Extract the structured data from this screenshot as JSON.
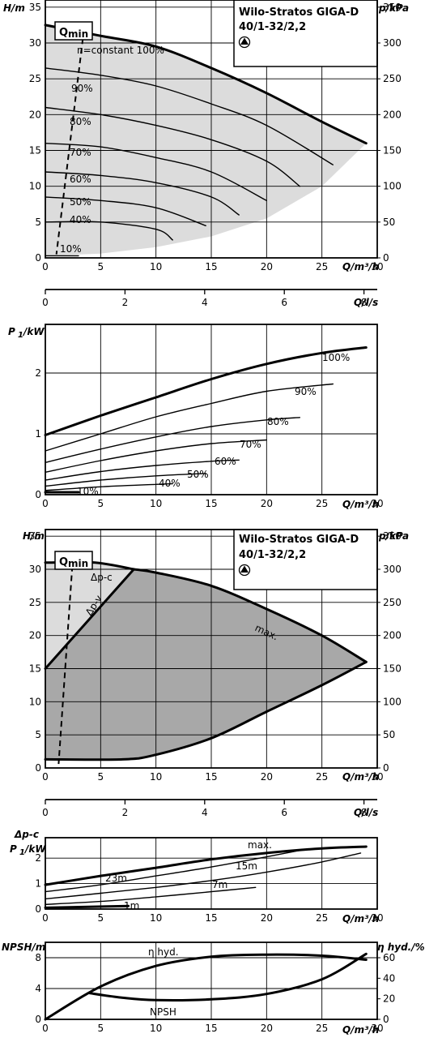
{
  "chart_data": [
    {
      "type": "line",
      "name": "hq-speed",
      "title": "Wilo-Stratos GIGA-D",
      "subtitle": "40/1-32/2,2",
      "x_label": "Q/m³/h",
      "y_label": "H/m",
      "y2_label": "p/kPa",
      "xlim": [
        0,
        30
      ],
      "ylim": [
        0,
        36
      ],
      "y2lim": [
        0,
        360
      ],
      "x_ticks": [
        0,
        5,
        10,
        15,
        20,
        25,
        30
      ],
      "y_ticks": [
        0,
        5,
        10,
        15,
        20,
        25,
        30,
        35
      ],
      "y2_ticks": [
        0,
        50,
        100,
        150,
        200,
        250,
        300,
        350
      ],
      "grid": true,
      "qmin_label": "Q",
      "qmin_sub": "min",
      "series": [
        {
          "name": "n=constant 100%",
          "x": [
            0,
            5,
            10,
            15,
            20,
            25,
            29
          ],
          "y": [
            32.5,
            31,
            29.5,
            26.5,
            23,
            19,
            16
          ]
        },
        {
          "name": "90%",
          "x": [
            0,
            5,
            10,
            15,
            20,
            26
          ],
          "y": [
            26.5,
            25.5,
            24,
            21.5,
            18.5,
            13
          ]
        },
        {
          "name": "80%",
          "x": [
            0,
            5,
            10,
            15,
            20,
            23
          ],
          "y": [
            21,
            20,
            18.5,
            16.5,
            13.5,
            10
          ]
        },
        {
          "name": "70%",
          "x": [
            0,
            5,
            10,
            15,
            20
          ],
          "y": [
            16,
            15.5,
            14,
            12,
            8
          ]
        },
        {
          "name": "60%",
          "x": [
            0,
            5,
            10,
            15,
            17.5
          ],
          "y": [
            12,
            11.5,
            10.5,
            8.5,
            6
          ]
        },
        {
          "name": "50%",
          "x": [
            0,
            5,
            10,
            14.5
          ],
          "y": [
            8.5,
            8,
            7,
            4.5
          ]
        },
        {
          "name": "40%",
          "x": [
            0,
            5,
            10,
            11.5
          ],
          "y": [
            5,
            5,
            4,
            2.5
          ]
        },
        {
          "name": "10%",
          "x": [
            0,
            3
          ],
          "y": [
            0.3,
            0.3
          ]
        }
      ]
    },
    {
      "type": "line",
      "name": "q-ls-axis",
      "x_label": "Q/l/s",
      "x_ticks": [
        0,
        2,
        4,
        6,
        8
      ],
      "xlim": [
        0,
        8.333
      ]
    },
    {
      "type": "line",
      "name": "power-speed",
      "y_label": "P",
      "y_label_sub": "1",
      "y_label_unit": "/kW",
      "x_label": "Q/m³/h",
      "xlim": [
        0,
        30
      ],
      "ylim": [
        0,
        2.8
      ],
      "x_ticks": [
        0,
        5,
        10,
        15,
        20,
        25,
        30
      ],
      "y_ticks": [
        0,
        1,
        2
      ],
      "grid": true,
      "series": [
        {
          "name": "100%",
          "x": [
            0,
            5,
            10,
            15,
            20,
            25,
            29
          ],
          "y": [
            0.98,
            1.3,
            1.6,
            1.9,
            2.15,
            2.33,
            2.42
          ]
        },
        {
          "name": "90%",
          "x": [
            0,
            5,
            10,
            15,
            20,
            26
          ],
          "y": [
            0.72,
            1.0,
            1.28,
            1.5,
            1.7,
            1.82
          ]
        },
        {
          "name": "80%",
          "x": [
            0,
            5,
            10,
            15,
            20,
            23
          ],
          "y": [
            0.53,
            0.75,
            0.95,
            1.12,
            1.23,
            1.27
          ]
        },
        {
          "name": "70%",
          "x": [
            0,
            5,
            10,
            15,
            20
          ],
          "y": [
            0.37,
            0.56,
            0.72,
            0.84,
            0.9
          ]
        },
        {
          "name": "60%",
          "x": [
            0,
            5,
            10,
            15,
            17.5
          ],
          "y": [
            0.24,
            0.38,
            0.48,
            0.55,
            0.57
          ]
        },
        {
          "name": "50%",
          "x": [
            0,
            5,
            10,
            14.5
          ],
          "y": [
            0.14,
            0.24,
            0.31,
            0.35
          ]
        },
        {
          "name": "40%",
          "x": [
            0,
            5,
            10,
            11.5
          ],
          "y": [
            0.07,
            0.13,
            0.17,
            0.18
          ]
        },
        {
          "name": "10%",
          "x": [
            0,
            3
          ],
          "y": [
            0.04,
            0.04
          ]
        }
      ]
    },
    {
      "type": "area",
      "name": "hq-control",
      "title": "Wilo-Stratos GIGA-D",
      "subtitle": "40/1-32/2,2",
      "x_label": "Q/m³/h",
      "y_label": "H/m",
      "y2_label": "p/kPa",
      "xlim": [
        0,
        30
      ],
      "ylim": [
        0,
        36
      ],
      "y2lim": [
        0,
        360
      ],
      "x_ticks": [
        0,
        5,
        10,
        15,
        20,
        25,
        30
      ],
      "y_ticks": [
        0,
        5,
        10,
        15,
        20,
        25,
        30,
        35
      ],
      "y2_ticks": [
        0,
        50,
        100,
        150,
        200,
        250,
        300,
        350
      ],
      "grid": true,
      "qmin_label": "Q",
      "qmin_sub": "min",
      "labels": {
        "dpc": "Δp-c",
        "dpv": "Δp-v",
        "max": "max."
      },
      "series": [
        {
          "name": "max.",
          "x": [
            8,
            10,
            15,
            20,
            25,
            29
          ],
          "y": [
            30,
            29.5,
            27.5,
            24,
            20,
            16
          ]
        },
        {
          "name": "Δp-c",
          "x": [
            0,
            4.5,
            8
          ],
          "y": [
            31,
            31,
            30
          ]
        },
        {
          "name": "Δp-v",
          "x": [
            0,
            8
          ],
          "y": [
            15,
            30
          ]
        },
        {
          "name": "min",
          "x": [
            0,
            7,
            10,
            15,
            20,
            25,
            29
          ],
          "y": [
            1.3,
            1.3,
            2,
            4.5,
            8.5,
            12.5,
            16
          ]
        }
      ]
    },
    {
      "type": "line",
      "name": "q-ls-axis-2",
      "x_label": "Q/l/s",
      "x_ticks": [
        0,
        2,
        4,
        6,
        8
      ],
      "xlim": [
        0,
        8.333
      ]
    },
    {
      "type": "line",
      "name": "power-dpc",
      "y_label_top": "Δp-c",
      "y_label": "P",
      "y_label_sub": "1",
      "y_label_unit": "/kW",
      "x_label": "Q/m³/h",
      "xlim": [
        0,
        30
      ],
      "ylim": [
        0,
        2.8
      ],
      "x_ticks": [
        0,
        5,
        10,
        15,
        20,
        25,
        30
      ],
      "y_ticks": [
        0,
        1,
        2
      ],
      "grid": true,
      "series": [
        {
          "name": "max.",
          "x": [
            0,
            5,
            10,
            15,
            20,
            25,
            29
          ],
          "y": [
            0.95,
            1.3,
            1.62,
            1.95,
            2.2,
            2.38,
            2.45
          ]
        },
        {
          "name": "23m",
          "x": [
            0,
            5,
            10,
            15,
            20,
            23
          ],
          "y": [
            0.68,
            0.95,
            1.3,
            1.65,
            2.05,
            2.3
          ]
        },
        {
          "name": "15m",
          "x": [
            0,
            5,
            10,
            15,
            20,
            25,
            28.5
          ],
          "y": [
            0.4,
            0.62,
            0.85,
            1.12,
            1.45,
            1.85,
            2.2
          ]
        },
        {
          "name": "7m",
          "x": [
            0,
            5,
            10,
            15,
            19
          ],
          "y": [
            0.18,
            0.3,
            0.48,
            0.68,
            0.85
          ]
        },
        {
          "name": "1m",
          "x": [
            0,
            7.5
          ],
          "y": [
            0.05,
            0.12
          ]
        }
      ]
    },
    {
      "type": "line",
      "name": "npsh-efficiency",
      "y_label": "NPSH/m",
      "y2_label": "η hyd./%",
      "x_label": "Q/m³/h",
      "xlim": [
        0,
        30
      ],
      "ylim": [
        0,
        10
      ],
      "y2lim": [
        0,
        75
      ],
      "x_ticks": [
        0,
        5,
        10,
        15,
        20,
        25,
        30
      ],
      "y_ticks": [
        0,
        4,
        8
      ],
      "y2_ticks": [
        0,
        20,
        40,
        60
      ],
      "grid": true,
      "series": [
        {
          "name": "η hyd.",
          "axis": "y2",
          "x": [
            0,
            5,
            10,
            15,
            20,
            25,
            29
          ],
          "y": [
            0,
            32,
            52,
            61,
            63,
            62,
            58
          ]
        },
        {
          "name": "NPSH",
          "axis": "y",
          "x": [
            4,
            7,
            10,
            15,
            20,
            25,
            29
          ],
          "y": [
            3.4,
            2.8,
            2.5,
            2.6,
            3.3,
            5.2,
            8.5
          ]
        }
      ]
    }
  ]
}
